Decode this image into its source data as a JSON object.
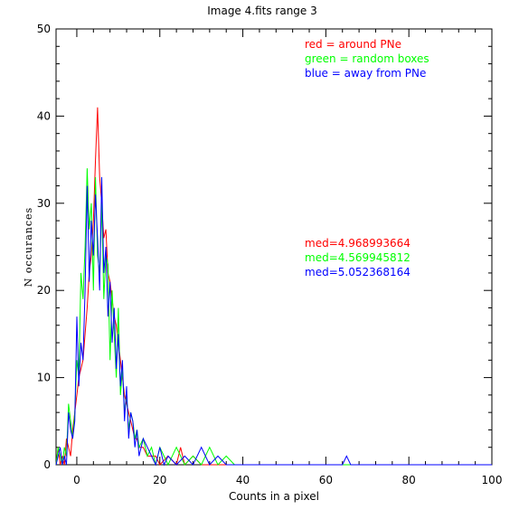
{
  "chart_data": {
    "type": "line",
    "title": "Image 4.fits   range 3",
    "xlabel": "Counts in a pixel",
    "ylabel": "N occurances",
    "xlim": [
      -5,
      100
    ],
    "ylim": [
      0,
      50
    ],
    "xticks": [
      0,
      20,
      40,
      60,
      80,
      100
    ],
    "yticks": [
      0,
      10,
      20,
      30,
      40,
      50
    ],
    "xtick_labels": [
      "0",
      "20",
      "40",
      "60",
      "80",
      "100"
    ],
    "ytick_labels": [
      "0",
      "10",
      "20",
      "30",
      "40",
      "50"
    ],
    "grid": false,
    "legend_position": "top-right",
    "legend": [
      {
        "label": "red = around PNe",
        "color": "#ff0000"
      },
      {
        "label": "green = random boxes",
        "color": "#00ff00"
      },
      {
        "label": "blue = away from PNe",
        "color": "#0000ff"
      }
    ],
    "annotations": [
      {
        "text": "med=4.968993664",
        "color": "#ff0000"
      },
      {
        "text": "med=4.569945812",
        "color": "#00ff00"
      },
      {
        "text": "med=5.052368164",
        "color": "#0000ff"
      }
    ],
    "series": [
      {
        "color": "#ff0000",
        "x": [
          -5,
          -4.5,
          -4,
          -3.5,
          -3,
          -2.5,
          -2,
          -1.5,
          -1,
          -0.5,
          0,
          0.5,
          1,
          1.5,
          2,
          2.5,
          3,
          3.5,
          4,
          4.5,
          5,
          5.5,
          6,
          6.5,
          7,
          7.5,
          8,
          8.5,
          9,
          9.5,
          10,
          10.5,
          11,
          11.5,
          12,
          12.5,
          13,
          13.5,
          14,
          14.5,
          15,
          16,
          17,
          18,
          19,
          20,
          22,
          24,
          25,
          26,
          28,
          30,
          32,
          35,
          40,
          100
        ],
        "y": [
          0,
          2,
          0,
          1,
          0,
          3,
          2,
          1,
          4,
          6,
          8,
          10,
          11,
          12,
          15,
          18,
          22,
          24,
          28,
          35,
          41,
          33,
          30,
          26,
          27,
          22,
          21,
          19,
          17,
          16,
          14,
          12,
          10,
          8,
          7,
          6,
          5,
          4,
          3,
          3,
          2,
          2,
          1,
          1,
          1,
          0,
          1,
          0,
          2,
          0,
          1,
          0,
          0,
          0,
          0,
          0
        ]
      },
      {
        "color": "#00ff00",
        "x": [
          -5,
          -4.5,
          -4,
          -3.5,
          -3,
          -2.5,
          -2,
          -1.5,
          -1,
          -0.5,
          0,
          0.5,
          1,
          1.5,
          2,
          2.5,
          3,
          3.5,
          4,
          4.5,
          5,
          5.5,
          6,
          6.5,
          7,
          7.5,
          8,
          8.5,
          9,
          9.5,
          10,
          10.5,
          11,
          11.5,
          12,
          12.5,
          13,
          13.5,
          14,
          14.5,
          15,
          16,
          17,
          18,
          19,
          20,
          21,
          22,
          24,
          26,
          28,
          30,
          32,
          34,
          36,
          38,
          40,
          100
        ],
        "y": [
          0,
          2,
          1,
          0,
          2,
          1,
          7,
          5,
          3,
          6,
          12,
          10,
          22,
          19,
          25,
          34,
          27,
          30,
          20,
          33,
          24,
          22,
          30,
          19,
          24,
          23,
          12,
          20,
          15,
          10,
          18,
          8,
          11,
          6,
          8,
          4,
          6,
          5,
          3,
          4,
          2,
          3,
          1,
          2,
          0,
          2,
          1,
          0,
          2,
          0,
          1,
          0,
          2,
          0,
          1,
          0,
          0,
          0
        ]
      },
      {
        "color": "#0000ff",
        "x": [
          -5,
          -4.5,
          -4,
          -3.5,
          -3,
          -2.5,
          -2,
          -1.5,
          -1,
          -0.5,
          0,
          0.5,
          1,
          1.5,
          2,
          2.5,
          3,
          3.5,
          4,
          4.5,
          5,
          5.5,
          6,
          6.5,
          7,
          7.5,
          8,
          8.5,
          9,
          9.5,
          10,
          10.5,
          11,
          11.5,
          12,
          12.5,
          13,
          13.5,
          14,
          14.5,
          15,
          16,
          17,
          18,
          19,
          20,
          21,
          22,
          24,
          26,
          28,
          30,
          32,
          34,
          36,
          40,
          60,
          64,
          65,
          66,
          70,
          80,
          100
        ],
        "y": [
          0,
          1,
          2,
          0,
          1,
          0,
          6,
          4,
          3,
          5,
          17,
          9,
          14,
          12,
          20,
          32,
          21,
          28,
          24,
          31,
          26,
          20,
          33,
          22,
          25,
          17,
          21,
          14,
          18,
          11,
          15,
          9,
          12,
          5,
          9,
          3,
          6,
          5,
          2,
          4,
          1,
          3,
          2,
          1,
          0,
          2,
          0,
          1,
          0,
          1,
          0,
          2,
          0,
          1,
          0,
          0,
          0,
          0,
          1,
          0,
          0,
          0,
          0
        ]
      }
    ]
  }
}
